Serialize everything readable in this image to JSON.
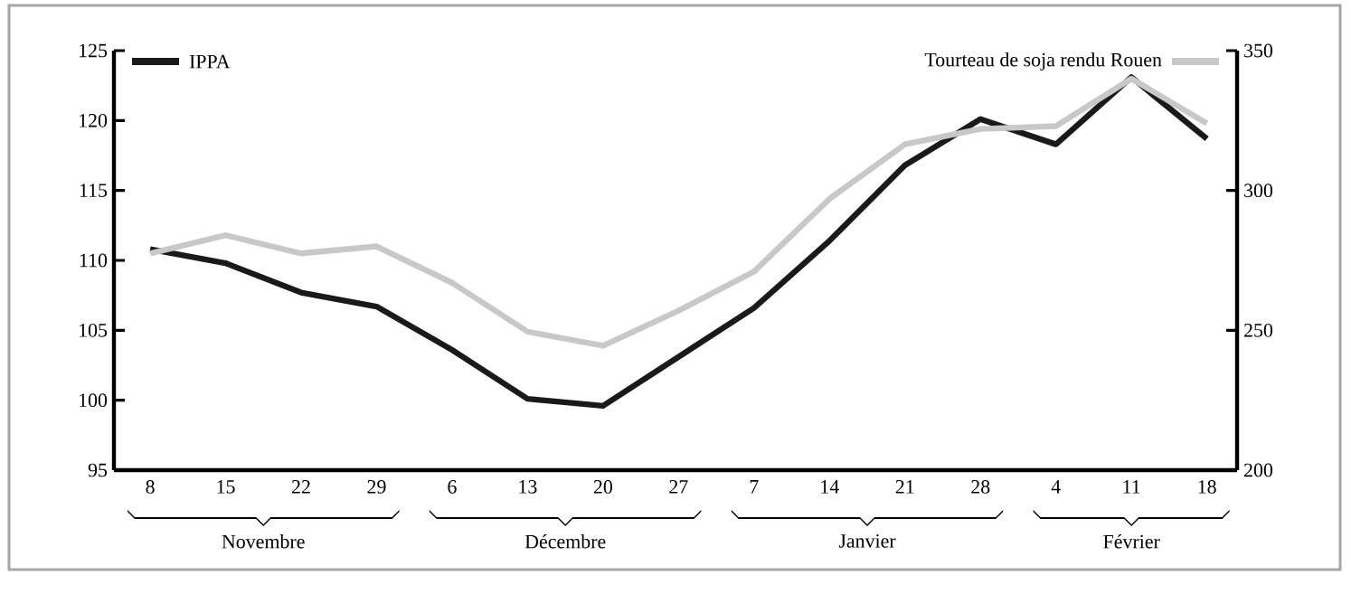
{
  "chart_data": {
    "type": "line",
    "categories": [
      "8",
      "15",
      "22",
      "29",
      "6",
      "13",
      "20",
      "27",
      "7",
      "14",
      "21",
      "28",
      "4",
      "11",
      "18"
    ],
    "series": [
      {
        "name": "IPPA",
        "color": "#1a1a1a",
        "values": [
          110.8,
          109.8,
          107.7,
          106.7,
          103.6,
          100.1,
          99.6,
          103.1,
          106.6,
          111.4,
          116.8,
          120.1,
          118.3,
          123.1,
          118.7
        ]
      },
      {
        "name": "Tourteau de soja rendu Rouen",
        "color": "#c8c8c8",
        "axis": "y2",
        "values": [
          277.5,
          284,
          277.5,
          280,
          267,
          249.5,
          244.5,
          257,
          271,
          297,
          316.5,
          322,
          323,
          340,
          324
        ]
      }
    ],
    "ylim": [
      95,
      125
    ],
    "yticks": [
      95,
      100,
      105,
      110,
      115,
      120,
      125
    ],
    "y2lim": [
      200,
      350
    ],
    "y2ticks": [
      200,
      250,
      300,
      350
    ],
    "legend": "top",
    "grid": false,
    "marker": "none",
    "line_style": "solid",
    "annotations": [
      "Novembre",
      "Décembre",
      "Janvier",
      "Février"
    ]
  }
}
